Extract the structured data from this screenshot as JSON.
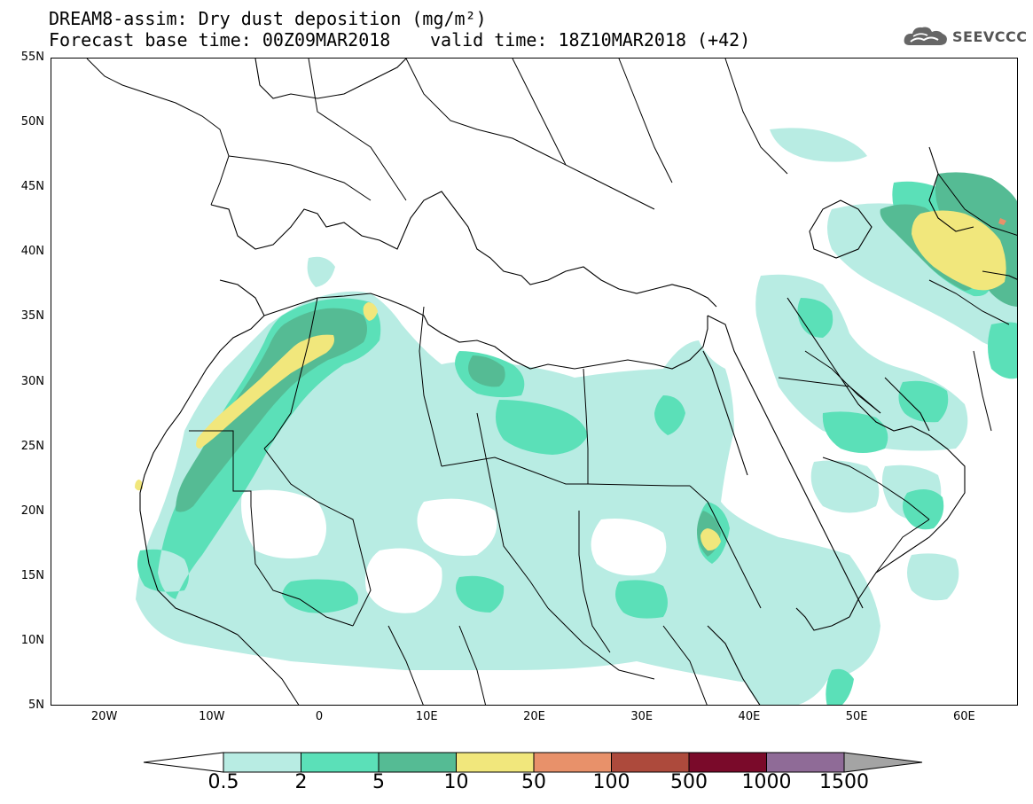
{
  "title": {
    "line1": "DREAM8-assim: Dry dust deposition (mg/m²)",
    "line2_left": "Forecast base time: 00Z09MAR2018",
    "line2_right": "valid time: 18Z10MAR2018 (+42)"
  },
  "logo": {
    "text": "SEEVCCC",
    "icon": "cloud-icon"
  },
  "map": {
    "projection": "equirectangular",
    "lon_range": [
      -25,
      65
    ],
    "lat_range": [
      5,
      55
    ],
    "lat_labels": [
      "55N",
      "50N",
      "45N",
      "40N",
      "35N",
      "30N",
      "25N",
      "20N",
      "15N",
      "10N",
      "5N"
    ],
    "lon_labels": [
      "20W",
      "10W",
      "0",
      "10E",
      "20E",
      "30E",
      "40E",
      "50E",
      "60E"
    ]
  },
  "colorbar": {
    "labels": [
      "0.5",
      "2",
      "5",
      "10",
      "50",
      "100",
      "500",
      "1000",
      "1500"
    ],
    "colors": [
      "#b8ece3",
      "#5be0b8",
      "#55bb94",
      "#f1e77c",
      "#e8916a",
      "#ad4a3c",
      "#7a0a2a",
      "#8f6b97"
    ],
    "extend_low_color": "#ffffff",
    "extend_high_color": "#a4a4a4"
  }
}
